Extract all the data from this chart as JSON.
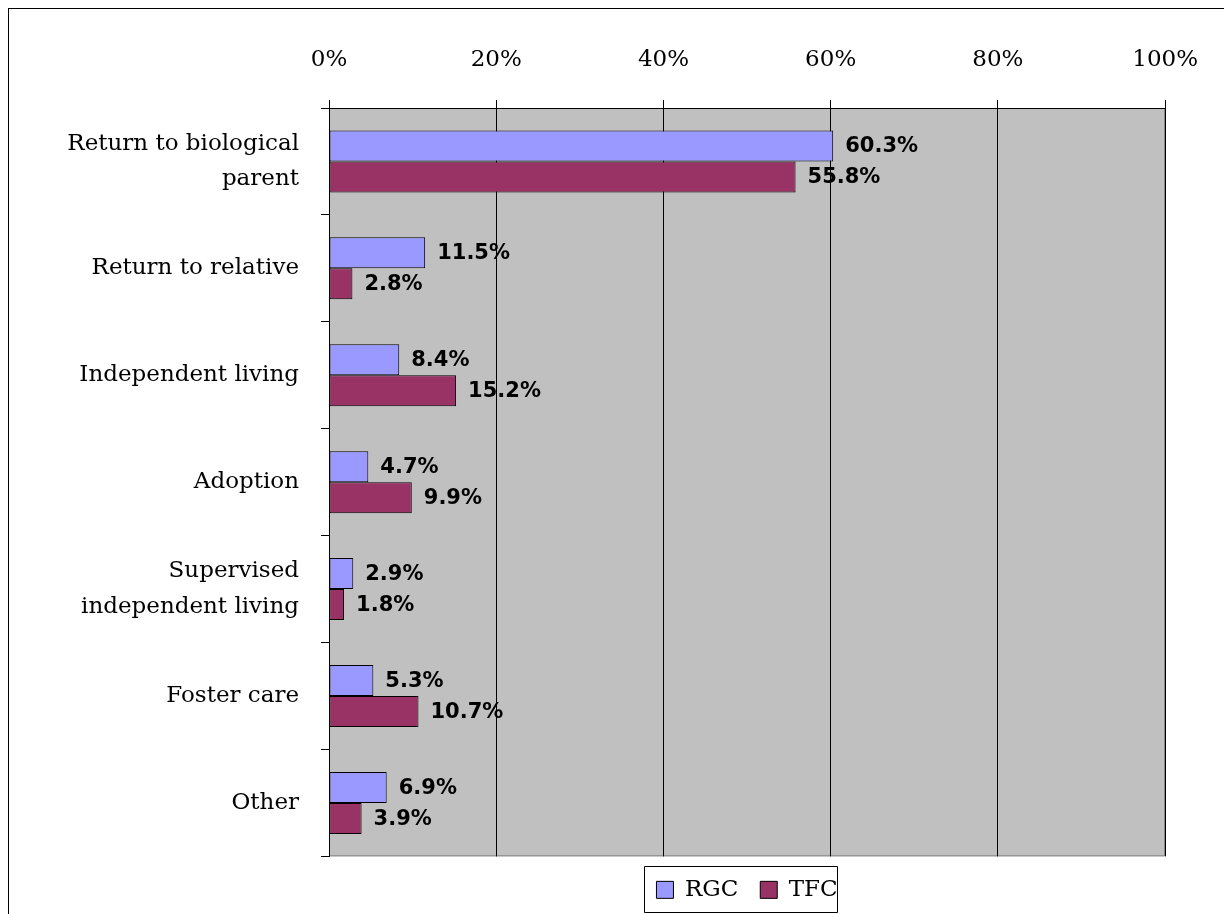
{
  "chart_data": {
    "type": "bar",
    "orientation": "horizontal",
    "categories": [
      "Return to biological parent",
      "Return to relative",
      "Independent living",
      "Adoption",
      "Supervised independent living",
      "Foster care",
      "Other"
    ],
    "series": [
      {
        "name": "RGC",
        "color": "#9999ff",
        "values": [
          60.3,
          11.5,
          8.4,
          4.7,
          2.9,
          5.3,
          6.9
        ],
        "value_labels": [
          "60.3%",
          "11.5%",
          "8.4%",
          "4.7%",
          "2.9%",
          "5.3%",
          "6.9%"
        ]
      },
      {
        "name": "TFC",
        "color": "#993366",
        "values": [
          55.8,
          2.8,
          15.2,
          9.9,
          1.8,
          10.7,
          3.9
        ],
        "value_labels": [
          "55.8%",
          "2.8%",
          "15.2%",
          "9.9%",
          "1.8%",
          "10.7%",
          "3.9%"
        ]
      }
    ],
    "xlim": [
      0,
      100
    ],
    "xticks": [
      {
        "value": 0,
        "label": "0%"
      },
      {
        "value": 20,
        "label": "20%"
      },
      {
        "value": 40,
        "label": "40%"
      },
      {
        "value": 60,
        "label": "60%"
      },
      {
        "value": 80,
        "label": "80%"
      },
      {
        "value": 100,
        "label": "100%"
      }
    ],
    "grid": "x",
    "legend": "bottom"
  }
}
